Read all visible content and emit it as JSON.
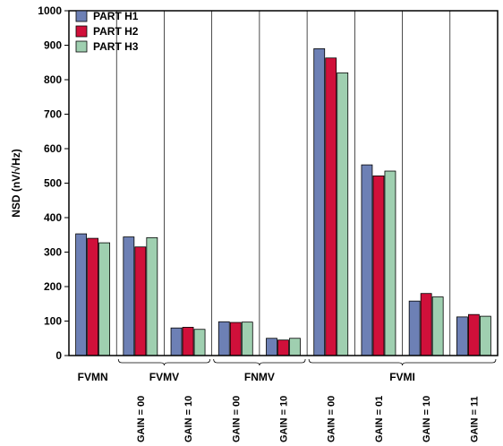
{
  "chart_data": {
    "type": "bar",
    "title": "",
    "xlabel": "",
    "ylabel": "NSD (nV/√Hz)",
    "ylim": [
      0,
      1000
    ],
    "yticks": [
      0,
      100,
      200,
      300,
      400,
      500,
      600,
      700,
      800,
      900,
      1000
    ],
    "grid": "vertical-separators",
    "legend_position": "top-left",
    "categories": [
      "FVMN",
      "FVMV GAIN = 00",
      "FVMV GAIN = 10",
      "FNMV GAIN = 00",
      "FNMV GAIN = 10",
      "FVMI GAIN = 00",
      "FVMI GAIN = 01",
      "FVMI GAIN = 10",
      "FVMI GAIN = 11"
    ],
    "groups": [
      {
        "label": "FVMN",
        "members": [
          0
        ]
      },
      {
        "label": "FVMV",
        "members": [
          1,
          2
        ]
      },
      {
        "label": "FNMV",
        "members": [
          3,
          4
        ]
      },
      {
        "label": "FVMI",
        "members": [
          5,
          6,
          7,
          8
        ]
      }
    ],
    "subcategory_labels": [
      "",
      "GAIN = 00",
      "GAIN = 10",
      "GAIN = 00",
      "GAIN = 10",
      "GAIN = 00",
      "GAIN = 01",
      "GAIN = 10",
      "GAIN = 11"
    ],
    "series": [
      {
        "name": "PART H1",
        "color": "#6D80B5",
        "values": [
          353,
          344,
          80,
          98,
          50,
          890,
          553,
          158,
          112
        ]
      },
      {
        "name": "PART H2",
        "color": "#D0103A",
        "values": [
          340,
          315,
          82,
          96,
          45,
          863,
          521,
          180,
          119
        ]
      },
      {
        "name": "PART H3",
        "color": "#9FCFB0",
        "values": [
          327,
          342,
          76,
          97,
          50,
          820,
          535,
          170,
          114
        ]
      }
    ]
  }
}
